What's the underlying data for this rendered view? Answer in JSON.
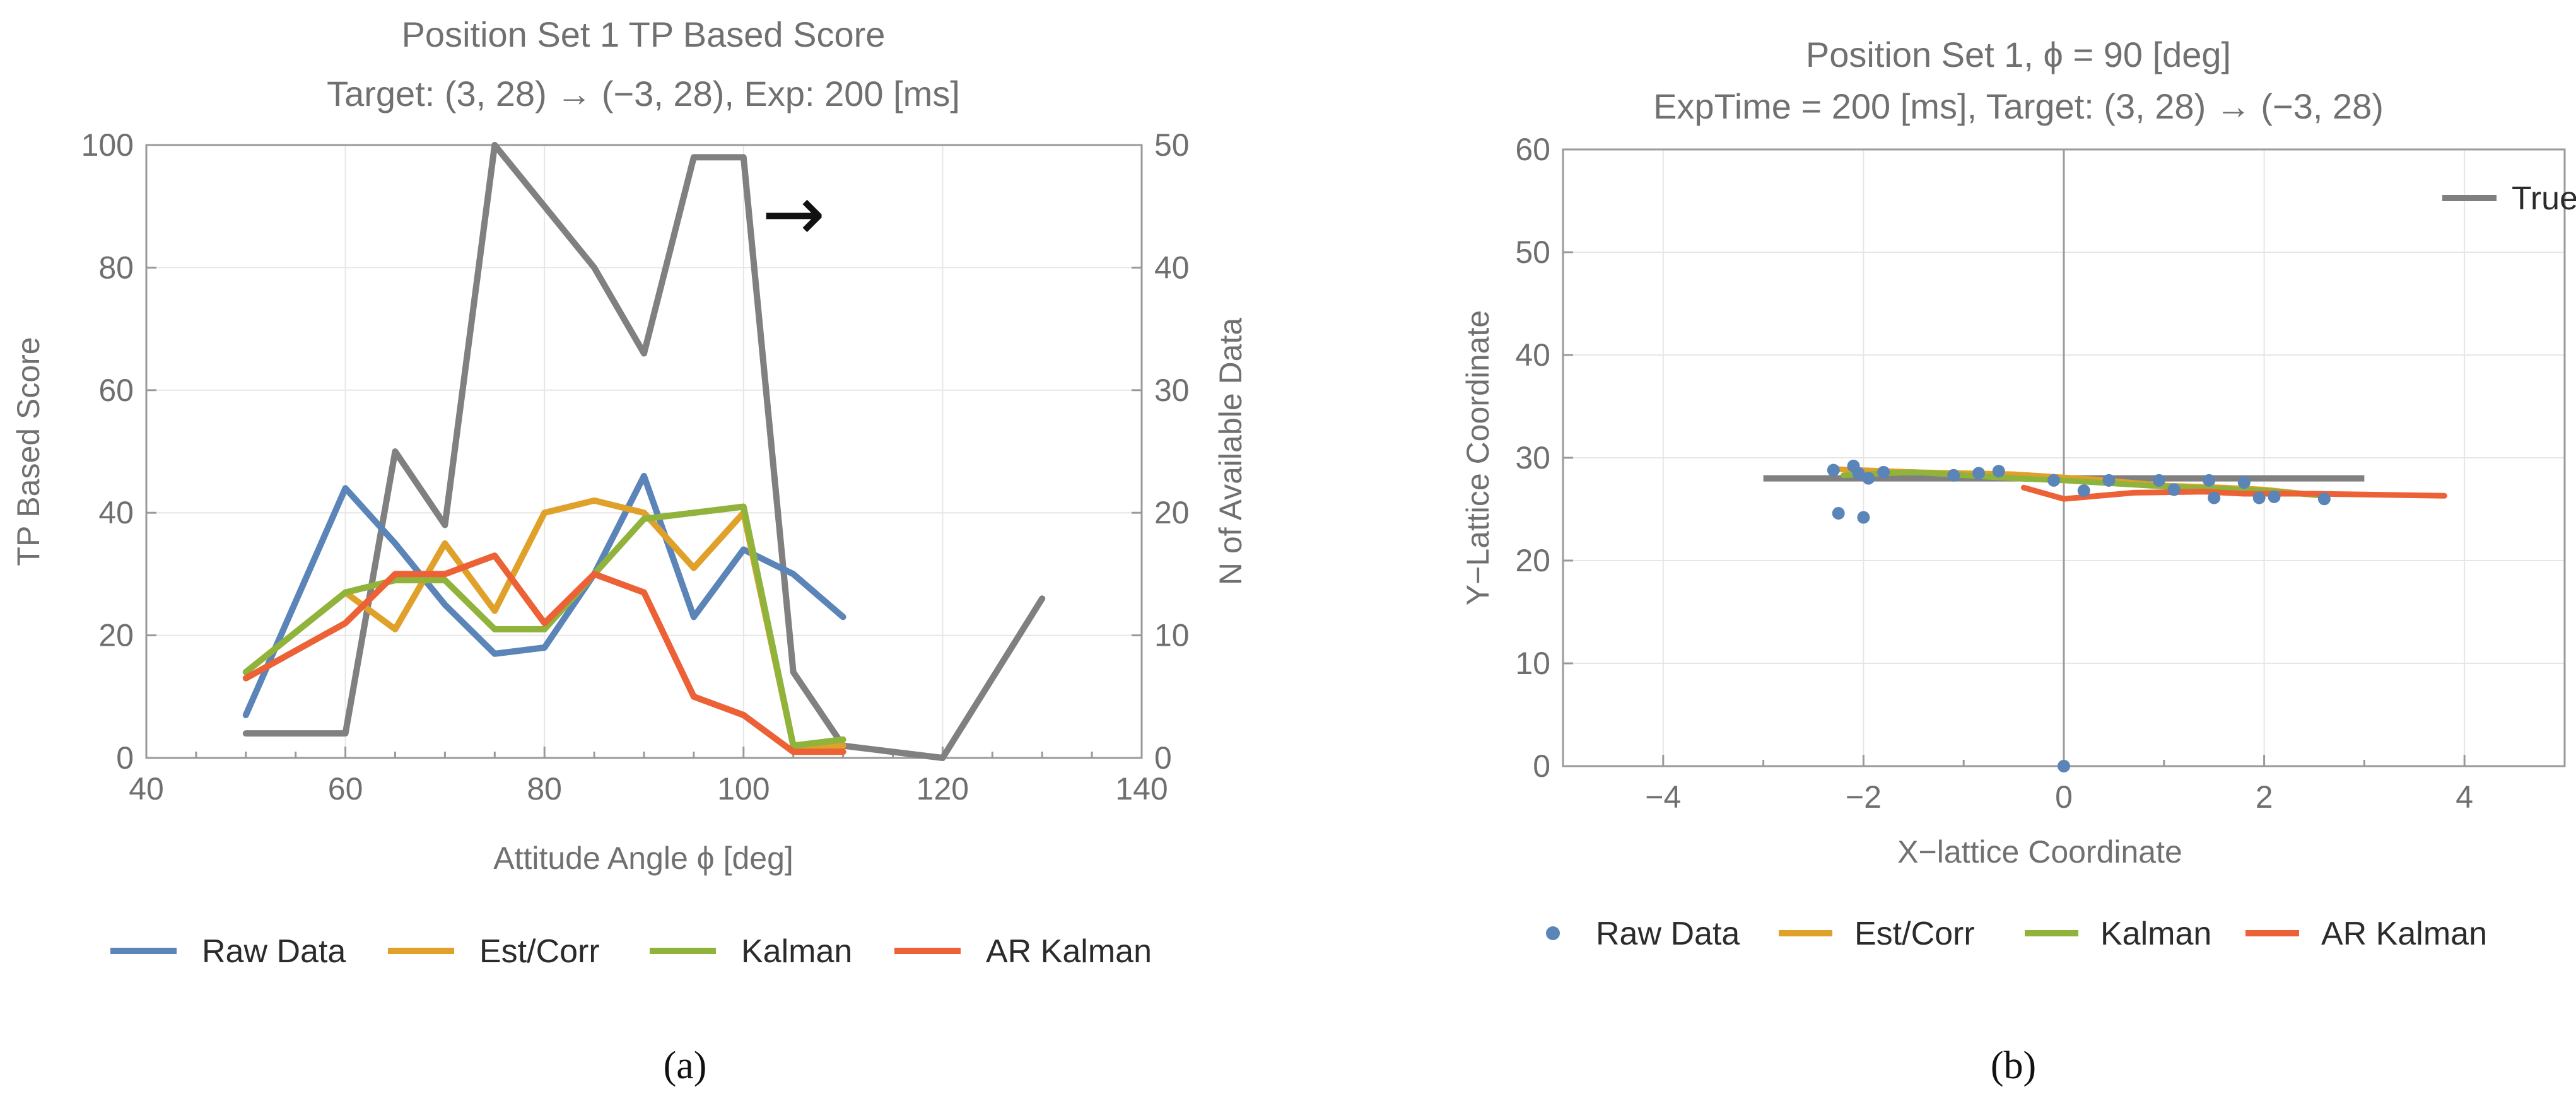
{
  "chart_data": [
    {
      "panel": "(a)",
      "type": "line",
      "title": "Position Set 1 TP Based Score",
      "subtitle": "Target: (3, 28) → (−3, 28), Exp: 200 [ms]",
      "xlabel": "Attitude Angle ϕ [deg]",
      "ylabel": "TP Based Score",
      "y2label": "N of Available Data",
      "xlim": [
        40,
        140
      ],
      "ylim": [
        0,
        100
      ],
      "y2lim": [
        0,
        50
      ],
      "xticks": [
        40,
        60,
        80,
        100,
        120,
        140
      ],
      "yticks": [
        0,
        20,
        40,
        60,
        80,
        100
      ],
      "y2ticks": [
        0,
        10,
        20,
        30,
        40,
        50
      ],
      "grid": true,
      "annotation": "→",
      "series": [
        {
          "name": "Raw Data",
          "color": "#5b84b8",
          "x": [
            50,
            60,
            65,
            70,
            75,
            80,
            85,
            90,
            95,
            100,
            105,
            110
          ],
          "values": [
            7,
            44,
            35,
            25,
            17,
            18,
            30,
            46,
            23,
            34,
            30,
            23
          ]
        },
        {
          "name": "Est/Corr",
          "color": "#e0a12a",
          "x": [
            50,
            60,
            65,
            70,
            75,
            80,
            85,
            90,
            95,
            100,
            105,
            110
          ],
          "values": [
            14,
            27,
            21,
            35,
            24,
            40,
            42,
            40,
            31,
            40,
            2,
            2
          ]
        },
        {
          "name": "Kalman",
          "color": "#8fb33b",
          "x": [
            50,
            60,
            65,
            70,
            75,
            80,
            85,
            90,
            95,
            100,
            105,
            110
          ],
          "values": [
            14,
            27,
            29,
            29,
            21,
            21,
            30,
            39,
            40,
            41,
            2,
            3
          ]
        },
        {
          "name": "AR Kalman",
          "color": "#ec6136",
          "x": [
            50,
            60,
            65,
            70,
            75,
            80,
            85,
            90,
            95,
            100,
            105,
            110
          ],
          "values": [
            13,
            22,
            30,
            30,
            33,
            22,
            30,
            27,
            10,
            7,
            1,
            1
          ]
        },
        {
          "name": "N of Available Data",
          "axis": "right",
          "legend": false,
          "color": "#808080",
          "x": [
            50,
            60,
            65,
            70,
            75,
            80,
            85,
            90,
            95,
            100,
            105,
            110,
            120,
            130
          ],
          "values": [
            2,
            2,
            25,
            19,
            50,
            45,
            40,
            33,
            49,
            49,
            7,
            1,
            0,
            13
          ]
        }
      ],
      "legend": [
        "Raw Data",
        "Est/Corr",
        "Kalman",
        "AR Kalman"
      ],
      "legend_position": "bottom"
    },
    {
      "panel": "(b)",
      "type": "scatter",
      "title": "Position Set 1, ϕ = 90 [deg]",
      "subtitle": "ExpTime = 200 [ms], Target: (3, 28) → (−3, 28)",
      "xlabel": "X−lattice Coordinate",
      "ylabel": "Y−Lattice Coordinate",
      "xlim": [
        -5,
        5
      ],
      "ylim": [
        0,
        60
      ],
      "xticks": [
        -4,
        -2,
        0,
        2,
        4
      ],
      "xtick_labels": [
        "−4",
        "−2",
        "0",
        "2",
        "4"
      ],
      "yticks": [
        0,
        10,
        20,
        30,
        40,
        50,
        60
      ],
      "grid": true,
      "true_line": {
        "name": "True",
        "color": "#808080",
        "x": [
          -3,
          3
        ],
        "y": [
          28,
          28
        ]
      },
      "raw_points": {
        "name": "Raw Data",
        "color": "#5b84b8",
        "x": [
          -2.3,
          -2.1,
          -2.05,
          -1.95,
          -1.8,
          -1.1,
          -0.85,
          -0.65,
          -0.1,
          0.2,
          0.45,
          0.95,
          1.1,
          1.45,
          1.5,
          1.8,
          1.95,
          2.1,
          2.6,
          -2.25,
          -2.0,
          0.0
        ],
        "y": [
          28.8,
          29.2,
          28.5,
          28.0,
          28.6,
          28.3,
          28.5,
          28.7,
          27.8,
          26.8,
          27.8,
          27.8,
          26.9,
          27.8,
          26.1,
          27.6,
          26.1,
          26.2,
          26.0,
          24.6,
          24.2,
          0.0
        ]
      },
      "series": [
        {
          "name": "Est/Corr",
          "color": "#e0a12a",
          "x": [
            -2.3,
            -1.5,
            -0.5,
            0.3,
            1.0,
            1.6,
            2.0,
            2.5
          ],
          "y": [
            28.9,
            28.6,
            28.4,
            27.9,
            27.3,
            27.1,
            26.9,
            26.4
          ]
        },
        {
          "name": "Kalman",
          "color": "#8fb33b",
          "x": [
            -2.2,
            -1.5,
            -1.0,
            -0.5,
            0.0,
            0.5,
            1.0,
            1.5,
            2.0,
            2.6
          ],
          "y": [
            28.3,
            28.6,
            28.3,
            28.0,
            27.8,
            27.5,
            27.2,
            27.0,
            26.8,
            26.3
          ]
        },
        {
          "name": "AR Kalman",
          "color": "#ec6136",
          "x": [
            -0.4,
            0.0,
            0.7,
            1.4,
            1.8,
            2.5,
            3.2,
            3.8
          ],
          "y": [
            27.1,
            26.0,
            26.6,
            26.7,
            26.5,
            26.5,
            26.4,
            26.3
          ]
        }
      ],
      "legend": [
        "Raw Data",
        "Est/Corr",
        "Kalman",
        "AR Kalman"
      ],
      "legend_position": "bottom",
      "inset_legend": "True",
      "inset_legend_position": "top-right"
    }
  ]
}
